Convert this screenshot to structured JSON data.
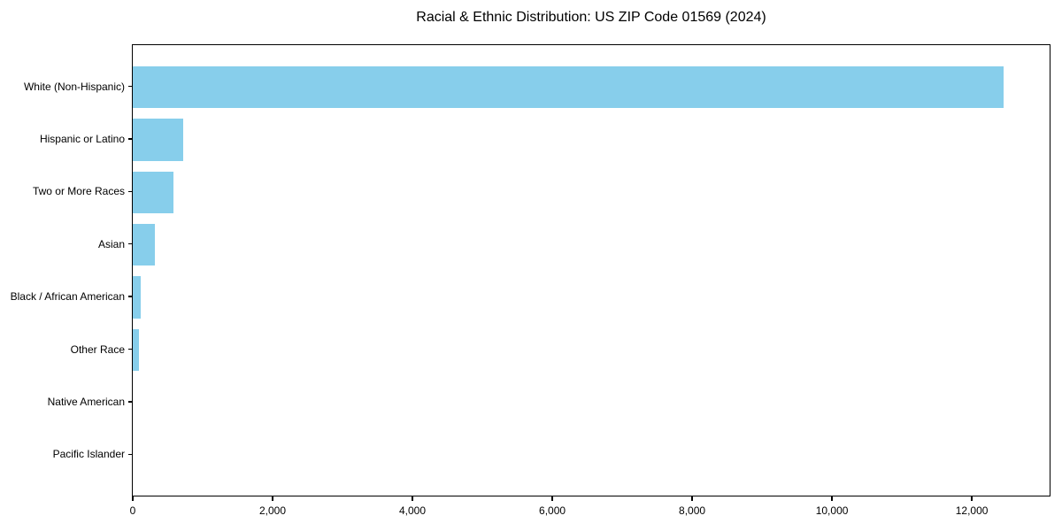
{
  "chart_data": {
    "type": "bar",
    "orientation": "horizontal",
    "title": "Racial & Ethnic Distribution: US ZIP Code 01569 (2024)",
    "categories": [
      "White (Non-Hispanic)",
      "Hispanic or Latino",
      "Two or More Races",
      "Asian",
      "Black / African American",
      "Other Race",
      "Native American",
      "Pacific Islander"
    ],
    "values": [
      12450,
      720,
      580,
      315,
      120,
      90,
      0,
      0
    ],
    "bar_color": "#87CEEB",
    "xlabel": "",
    "ylabel": "",
    "xlim": [
      0,
      13100
    ],
    "x_ticks": [
      0,
      2000,
      4000,
      6000,
      8000,
      10000,
      12000
    ],
    "x_tick_labels": [
      "0",
      "2,000",
      "4,000",
      "6,000",
      "8,000",
      "10,000",
      "12,000"
    ],
    "grid": false,
    "legend": false,
    "background_color": "#ffffff",
    "text_color": "#000000"
  }
}
